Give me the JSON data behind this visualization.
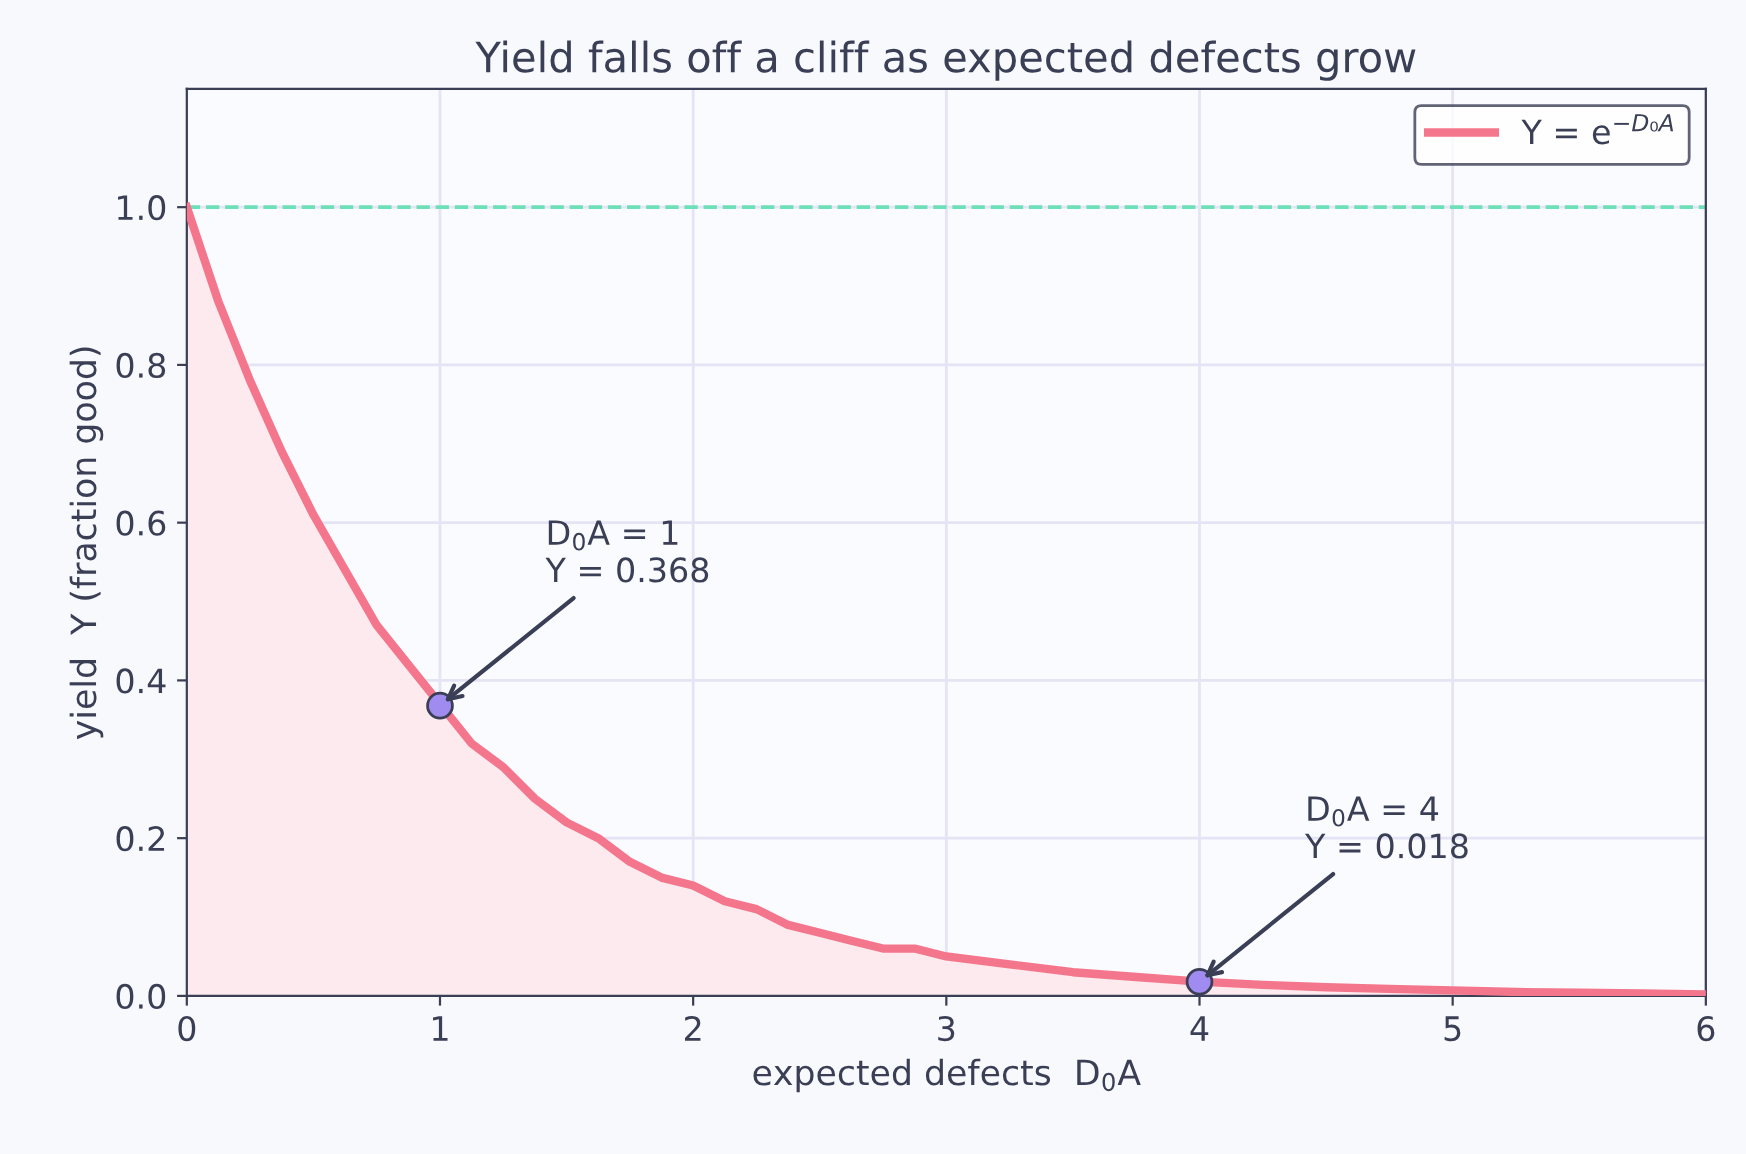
{
  "chart_data": {
    "type": "area",
    "title": "Yield falls off a cliff as expected defects grow",
    "xlabel": "expected defects  D$_{0}$A",
    "ylabel": "yield  Y (fraction good)",
    "series": [
      {
        "name": "Y = e$^{−D₀A}$",
        "color": "#f4768c",
        "x": [
          0,
          0.125,
          0.25,
          0.375,
          0.5,
          0.625,
          0.75,
          0.875,
          1,
          1.125,
          1.25,
          1.375,
          1.5,
          1.625,
          1.75,
          1.875,
          2,
          2.125,
          2.25,
          2.375,
          2.5,
          2.625,
          2.75,
          2.875,
          3,
          3.25,
          3.5,
          3.75,
          4,
          4.25,
          4.5,
          4.75,
          5,
          5.25,
          5.5,
          5.75,
          6
        ],
        "values": [
          1.0,
          0.88,
          0.78,
          0.69,
          0.61,
          0.54,
          0.47,
          0.42,
          0.37,
          0.32,
          0.29,
          0.25,
          0.22,
          0.2,
          0.17,
          0.15,
          0.14,
          0.12,
          0.11,
          0.09,
          0.08,
          0.07,
          0.06,
          0.06,
          0.05,
          0.04,
          0.03,
          0.024,
          0.018,
          0.014,
          0.011,
          0.009,
          0.007,
          0.005,
          0.004,
          0.003,
          0.002
        ]
      },
      {
        "type": "scatter",
        "color": "#a08cf0",
        "x": [
          1,
          4
        ],
        "values": [
          0.368,
          0.018
        ]
      }
    ],
    "annotations": [
      {
        "text": "D$_{0}$A = 1\nY = 0.368",
        "x": 1,
        "y": 0.368
      },
      {
        "text": "D$_{0}$A = 4\nY = 0.018",
        "x": 4,
        "y": 0.018
      }
    ],
    "ref_lines": [
      {
        "axis": "y",
        "value": 1.0,
        "color": "#6ee0b8",
        "line_style": "dashed"
      }
    ],
    "xlim": [
      0,
      6
    ],
    "ylim": [
      0,
      1.15
    ],
    "xticks": [
      0,
      1,
      2,
      3,
      4,
      5,
      6
    ],
    "yticks": [
      {
        "value": 0,
        "label": "0.0"
      },
      {
        "value": 0.2,
        "label": "0.2"
      },
      {
        "value": 0.4,
        "label": "0.4"
      },
      {
        "value": 0.6,
        "label": "0.6"
      },
      {
        "value": 0.8,
        "label": "0.8"
      },
      {
        "value": 1.0,
        "label": "1.0"
      }
    ],
    "grid": true,
    "legend": "top right"
  }
}
